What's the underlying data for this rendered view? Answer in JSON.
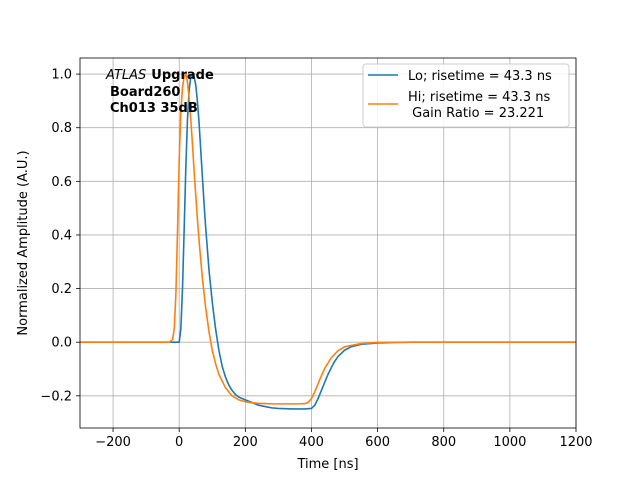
{
  "chart_data": {
    "type": "line",
    "title": "",
    "xlabel": "Time [ns]",
    "ylabel": "Normalized Amplitude (A.U.)",
    "xlim": [
      -300,
      1200
    ],
    "ylim": [
      -0.32,
      1.06
    ],
    "xticks": [
      -200,
      0,
      200,
      400,
      600,
      800,
      1000,
      1200
    ],
    "yticks": [
      -0.2,
      0.0,
      0.2,
      0.4,
      0.6,
      0.8,
      1.0
    ],
    "xtick_labels": [
      "−200",
      "0",
      "200",
      "400",
      "600",
      "800",
      "1000",
      "1200"
    ],
    "ytick_labels": [
      "−0.2",
      "0.0",
      "0.2",
      "0.4",
      "0.6",
      "0.8",
      "1.0"
    ],
    "grid": true,
    "legend_position": "top-right",
    "annotation": {
      "italic": "ATLAS",
      "bold_rest": "Upgrade",
      "line2": "Board260",
      "line3": "Ch013 35dB"
    },
    "series": [
      {
        "name": "Lo; risetime = 43.3 ns",
        "color": "#1f77b4",
        "x": [
          -300,
          -250,
          -200,
          -150,
          -100,
          -50,
          -20,
          0,
          5,
          10,
          15,
          20,
          25,
          30,
          35,
          40,
          45,
          50,
          55,
          60,
          65,
          70,
          75,
          80,
          85,
          90,
          100,
          110,
          120,
          130,
          140,
          150,
          160,
          170,
          180,
          200,
          220,
          240,
          260,
          280,
          300,
          320,
          340,
          360,
          380,
          400,
          410,
          420,
          430,
          440,
          450,
          460,
          470,
          480,
          500,
          520,
          550,
          600,
          650,
          700,
          800,
          900,
          1000,
          1100,
          1200
        ],
        "y": [
          0.0,
          0.0,
          0.0,
          0.0,
          0.0,
          0.0,
          0.0,
          0.0,
          0.05,
          0.2,
          0.42,
          0.65,
          0.83,
          0.94,
          0.99,
          1.0,
          0.99,
          0.96,
          0.9,
          0.82,
          0.72,
          0.62,
          0.52,
          0.43,
          0.35,
          0.27,
          0.15,
          0.05,
          -0.03,
          -0.09,
          -0.13,
          -0.16,
          -0.18,
          -0.195,
          -0.205,
          -0.215,
          -0.225,
          -0.235,
          -0.24,
          -0.245,
          -0.247,
          -0.248,
          -0.249,
          -0.249,
          -0.249,
          -0.247,
          -0.235,
          -0.21,
          -0.18,
          -0.15,
          -0.12,
          -0.095,
          -0.072,
          -0.054,
          -0.03,
          -0.017,
          -0.008,
          -0.003,
          -0.001,
          0.0,
          0.0,
          0.0,
          0.0,
          0.0,
          0.0
        ]
      },
      {
        "name": "Hi; risetime = 43.3 ns\n Gain Ratio = 23.221",
        "color": "#ff7f0e",
        "x": [
          -300,
          -250,
          -200,
          -150,
          -100,
          -50,
          -30,
          -20,
          -15,
          -10,
          -5,
          0,
          5,
          10,
          15,
          20,
          25,
          30,
          35,
          40,
          45,
          50,
          55,
          60,
          70,
          80,
          90,
          100,
          110,
          120,
          140,
          160,
          180,
          200,
          220,
          240,
          260,
          280,
          300,
          320,
          340,
          360,
          380,
          390,
          400,
          410,
          420,
          430,
          440,
          460,
          480,
          500,
          550,
          600,
          700,
          800,
          900,
          1000,
          1100,
          1200
        ],
        "y": [
          0.0,
          0.0,
          0.0,
          0.0,
          0.0,
          0.0,
          0.0,
          0.01,
          0.05,
          0.18,
          0.42,
          0.68,
          0.86,
          0.95,
          0.99,
          1.0,
          0.97,
          0.91,
          0.83,
          0.74,
          0.64,
          0.55,
          0.46,
          0.38,
          0.24,
          0.13,
          0.04,
          -0.03,
          -0.08,
          -0.12,
          -0.17,
          -0.2,
          -0.215,
          -0.222,
          -0.226,
          -0.228,
          -0.229,
          -0.23,
          -0.23,
          -0.23,
          -0.23,
          -0.23,
          -0.229,
          -0.225,
          -0.21,
          -0.185,
          -0.155,
          -0.125,
          -0.098,
          -0.058,
          -0.032,
          -0.017,
          -0.005,
          -0.001,
          0.0,
          0.0,
          0.0,
          0.0,
          0.0,
          0.0
        ]
      }
    ]
  }
}
